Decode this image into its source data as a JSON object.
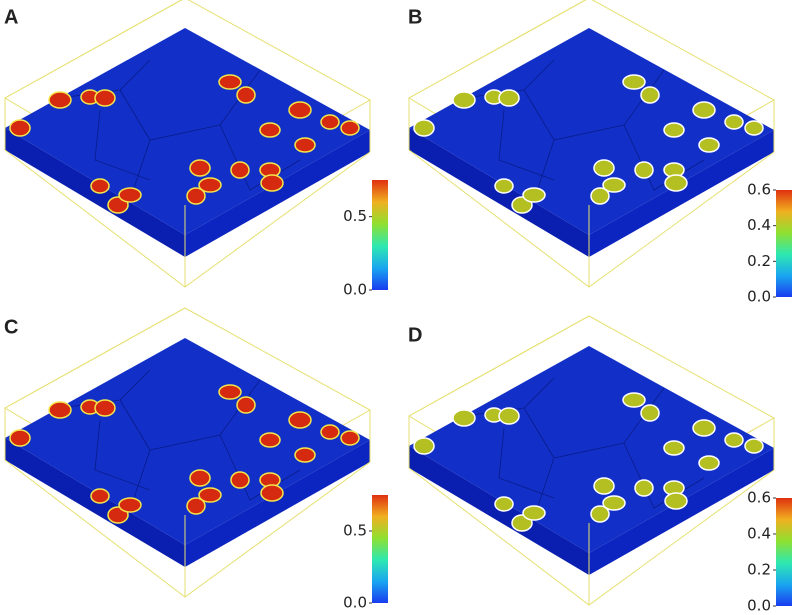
{
  "panels": [
    {
      "label": "A",
      "spot_color": "#d62a10",
      "ring_color": "#f4e64a",
      "cbar_range": [
        0,
        0.75
      ],
      "cbar_ticks": [
        {
          "value": 0,
          "label": "0.0"
        },
        0.5
      ]
    },
    {
      "label": "B",
      "spot_color": "#b4bf22",
      "ring_color": "#ffffff",
      "cbar_range": [
        0,
        0.6
      ],
      "cbar_ticks": [
        {
          "value": 0,
          "label": "0.0"
        },
        0.2,
        0.4,
        0.6
      ]
    },
    {
      "label": "C",
      "spot_color": "#d62a10",
      "ring_color": "#f4e64a",
      "cbar_range": [
        0,
        0.75
      ],
      "cbar_ticks": [
        {
          "value": 0,
          "label": "0.0"
        },
        0.5
      ]
    },
    {
      "label": "D",
      "spot_color": "#b4bf22",
      "ring_color": "#ffffff",
      "cbar_range": [
        0,
        0.6
      ],
      "cbar_ticks": [
        {
          "value": 0,
          "label": "0.0"
        },
        0.2,
        0.4,
        0.6
      ]
    }
  ]
}
